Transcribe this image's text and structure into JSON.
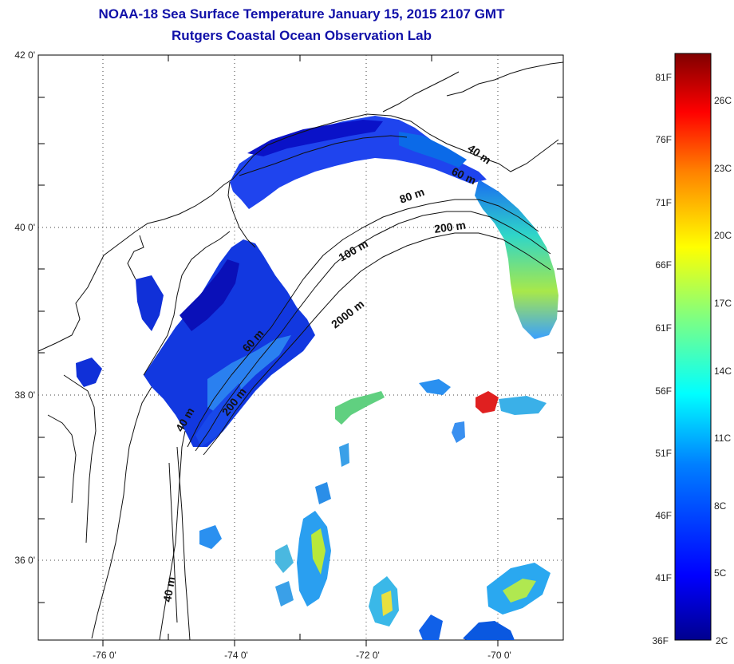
{
  "header": {
    "title_line1": "NOAA-18 Sea Surface Temperature January 15, 2015 2107 GMT",
    "title_line2": "Rutgers Coastal Ocean Observation Lab"
  },
  "map": {
    "lat_labels": [
      "42 0'",
      "40 0'",
      "38 0'",
      "36 0'"
    ],
    "lon_labels": [
      "-76 0'",
      "-74 0'",
      "-72 0'",
      "-70 0'"
    ],
    "contour_labels": [
      "40 m",
      "60 m",
      "80 m",
      "200 m",
      "100 m",
      "2000 m",
      "60 m",
      "200 m",
      "40 m",
      "40 m"
    ]
  },
  "colorbar": {
    "fahrenheit_labels": [
      "81F",
      "76F",
      "71F",
      "66F",
      "61F",
      "56F",
      "51F",
      "46F",
      "41F",
      "36F"
    ],
    "celsius_labels": [
      "26C",
      "23C",
      "20C",
      "17C",
      "14C",
      "11C",
      "8C",
      "5C",
      "2C"
    ],
    "colors": [
      "#00008f",
      "#0000ff",
      "#0080ff",
      "#00ffff",
      "#80ff80",
      "#ffff00",
      "#ff8000",
      "#ff0000",
      "#800000"
    ]
  }
}
